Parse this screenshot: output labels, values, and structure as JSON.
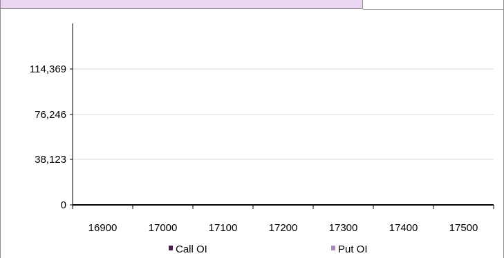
{
  "chart_data": {
    "type": "bar",
    "title": "",
    "xlabel": "",
    "ylabel": "",
    "categories": [
      "16900",
      "17000",
      "17100",
      "17200",
      "17300",
      "17400",
      "17500"
    ],
    "y_ticks": [
      "0",
      "38,123",
      "76,246",
      "114,369"
    ],
    "ylim": [
      0,
      152492
    ],
    "grid": true,
    "legend_position": "bottom",
    "series": [
      {
        "name": "Call OI",
        "color": "#4b1c4f",
        "values": [
          0,
          0,
          0,
          0,
          0,
          0,
          0
        ]
      },
      {
        "name": "Put OI",
        "color": "#a889c0",
        "values": [
          0,
          0,
          0,
          0,
          0,
          0,
          0
        ]
      }
    ]
  }
}
